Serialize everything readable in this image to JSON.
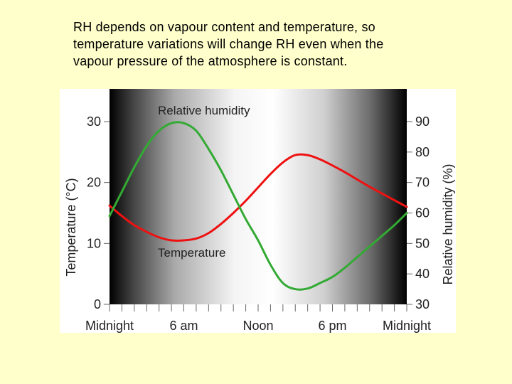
{
  "caption": {
    "lines": [
      "RH depends on vapour content and temperature, so",
      "temperature variations will change RH even when the",
      "vapour pressure of the atmosphere is constant."
    ]
  },
  "colors": {
    "background": "#ffffcc",
    "temperature_line": "#ee1111",
    "humidity_line": "#33aa33",
    "gradient_dark": "#000000",
    "gradient_light": "#ffffff"
  },
  "chart_data": {
    "type": "line",
    "title": "",
    "xlabel": "",
    "ylabel": "Temperature (°C)",
    "y2label": "Relative humidity (%)",
    "xlim": [
      0,
      24
    ],
    "ylim": [
      0,
      30
    ],
    "y2lim": [
      30,
      90
    ],
    "x_tick_labels": [
      {
        "x": 0,
        "label": "Midnight"
      },
      {
        "x": 6,
        "label": "6 am"
      },
      {
        "x": 12,
        "label": "Noon"
      },
      {
        "x": 18,
        "label": "6 pm"
      },
      {
        "x": 24,
        "label": "Midnight"
      }
    ],
    "y_ticks": [
      0,
      10,
      20,
      30
    ],
    "y2_ticks": [
      30,
      40,
      50,
      60,
      70,
      80,
      90
    ],
    "background": "day-night shading: dark at midnight, light at midday",
    "series": [
      {
        "name": "Temperature",
        "axis": "left",
        "color": "#ee1111",
        "points": [
          [
            0,
            16.2
          ],
          [
            1,
            14.5
          ],
          [
            2,
            13.0
          ],
          [
            3,
            11.9
          ],
          [
            4,
            11.0
          ],
          [
            5,
            10.5
          ],
          [
            6,
            10.5
          ],
          [
            7,
            10.8
          ],
          [
            8,
            11.7
          ],
          [
            9,
            13.2
          ],
          [
            10,
            15.0
          ],
          [
            11,
            17.0
          ],
          [
            12,
            19.2
          ],
          [
            13,
            21.4
          ],
          [
            14,
            23.3
          ],
          [
            15,
            24.5
          ],
          [
            16,
            24.5
          ],
          [
            17,
            23.8
          ],
          [
            18,
            22.8
          ],
          [
            19,
            21.7
          ],
          [
            20,
            20.5
          ],
          [
            21,
            19.3
          ],
          [
            22,
            18.2
          ],
          [
            23,
            17.1
          ],
          [
            24,
            16.0
          ]
        ]
      },
      {
        "name": "Relative humidity",
        "axis": "right",
        "color": "#33aa33",
        "points": [
          [
            0,
            59
          ],
          [
            1,
            67
          ],
          [
            2,
            75
          ],
          [
            3,
            82
          ],
          [
            4,
            87
          ],
          [
            5,
            89.5
          ],
          [
            6,
            89.5
          ],
          [
            7,
            87
          ],
          [
            8,
            81
          ],
          [
            9,
            74
          ],
          [
            10,
            66
          ],
          [
            11,
            58
          ],
          [
            12,
            51
          ],
          [
            13,
            43
          ],
          [
            14,
            37
          ],
          [
            15,
            35
          ],
          [
            16,
            35.2
          ],
          [
            17,
            37
          ],
          [
            18,
            39
          ],
          [
            19,
            42
          ],
          [
            20,
            45.5
          ],
          [
            21,
            49
          ],
          [
            22,
            52.5
          ],
          [
            23,
            56
          ],
          [
            24,
            60
          ]
        ]
      }
    ]
  }
}
